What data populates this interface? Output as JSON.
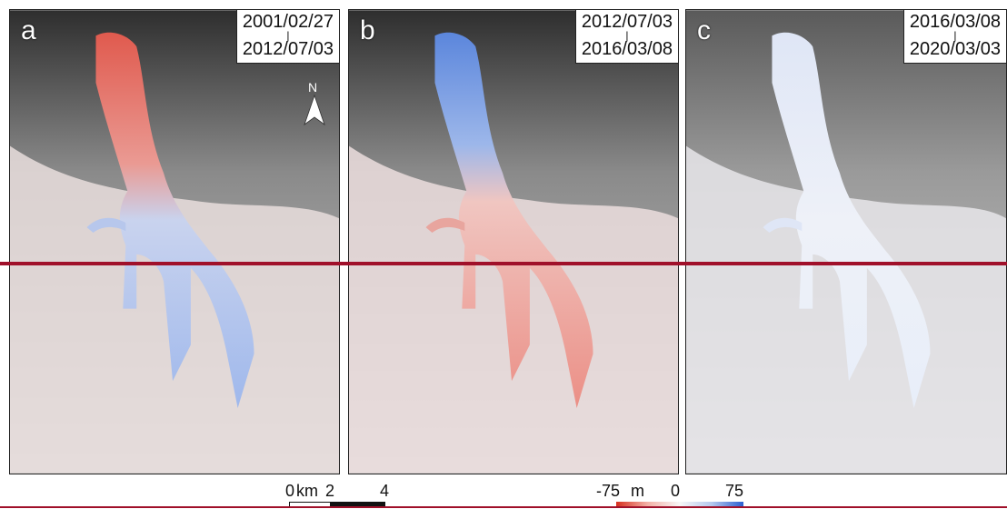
{
  "panels": [
    {
      "letter": "a",
      "date_start": "2001/02/27",
      "separator": "|",
      "date_end": "2012/07/03",
      "trunk_color": "#e05a4e",
      "lower_color": "#9fb8ec"
    },
    {
      "letter": "b",
      "date_start": "2012/07/03",
      "separator": "|",
      "date_end": "2016/03/08",
      "trunk_color": "#5b86dc",
      "lower_color": "#eb8f86"
    },
    {
      "letter": "c",
      "date_start": "2016/03/08",
      "separator": "|",
      "date_end": "2020/03/03",
      "trunk_color": "#dfe6f6",
      "lower_color": "#e8eef9"
    }
  ],
  "north_arrow": {
    "label": "N"
  },
  "scale_bar": {
    "label_zero": "0",
    "unit": "km",
    "label_two": "2",
    "label_four": "4"
  },
  "legend": {
    "min_label": "-75",
    "unit": "m",
    "mid_label": "0",
    "max_label": "75",
    "min_color": "#d7301f",
    "max_color": "#2b5fd1"
  },
  "colors": {
    "highlight_line": "#a0102a"
  }
}
